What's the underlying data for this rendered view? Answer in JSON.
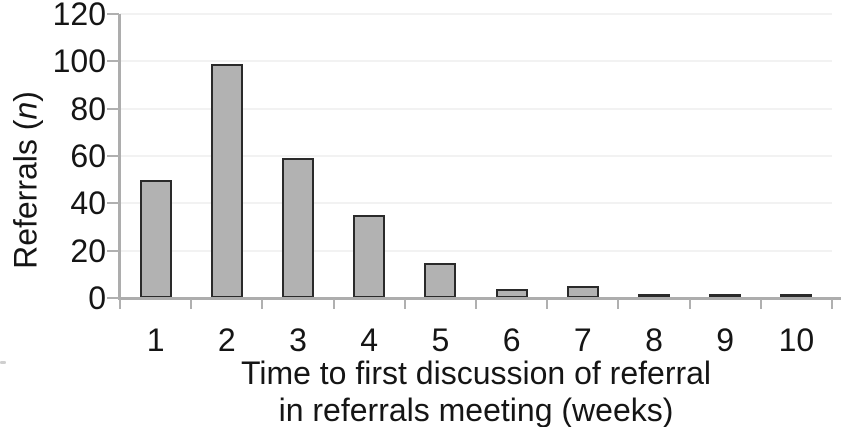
{
  "chart_data": {
    "type": "bar",
    "title": "",
    "categories": [
      "1",
      "2",
      "3",
      "4",
      "5",
      "6",
      "7",
      "8",
      "9",
      "10"
    ],
    "values": [
      50,
      99,
      59,
      35,
      15,
      4,
      5,
      1,
      1,
      1
    ],
    "xlabel_line1": "Time to first discussion of referral",
    "xlabel_line2": "in referrals meeting (weeks)",
    "ylabel": {
      "prefix": "Referrals (",
      "italic": "n",
      "suffix": ")"
    },
    "y_ticks": [
      0,
      20,
      40,
      60,
      80,
      100,
      120
    ],
    "ylim": [
      0,
      120
    ],
    "xlim_categories": 10,
    "legend_position": "none",
    "grid": "faint-horizontal",
    "colors": {
      "bar_fill": "#b2b2b2",
      "bar_border": "#2a2a2a",
      "axis": "#adadad",
      "tick": "#b0b0b0",
      "gridline": "#f2f2f2",
      "text": "#151515",
      "background": "#ffffff"
    }
  }
}
